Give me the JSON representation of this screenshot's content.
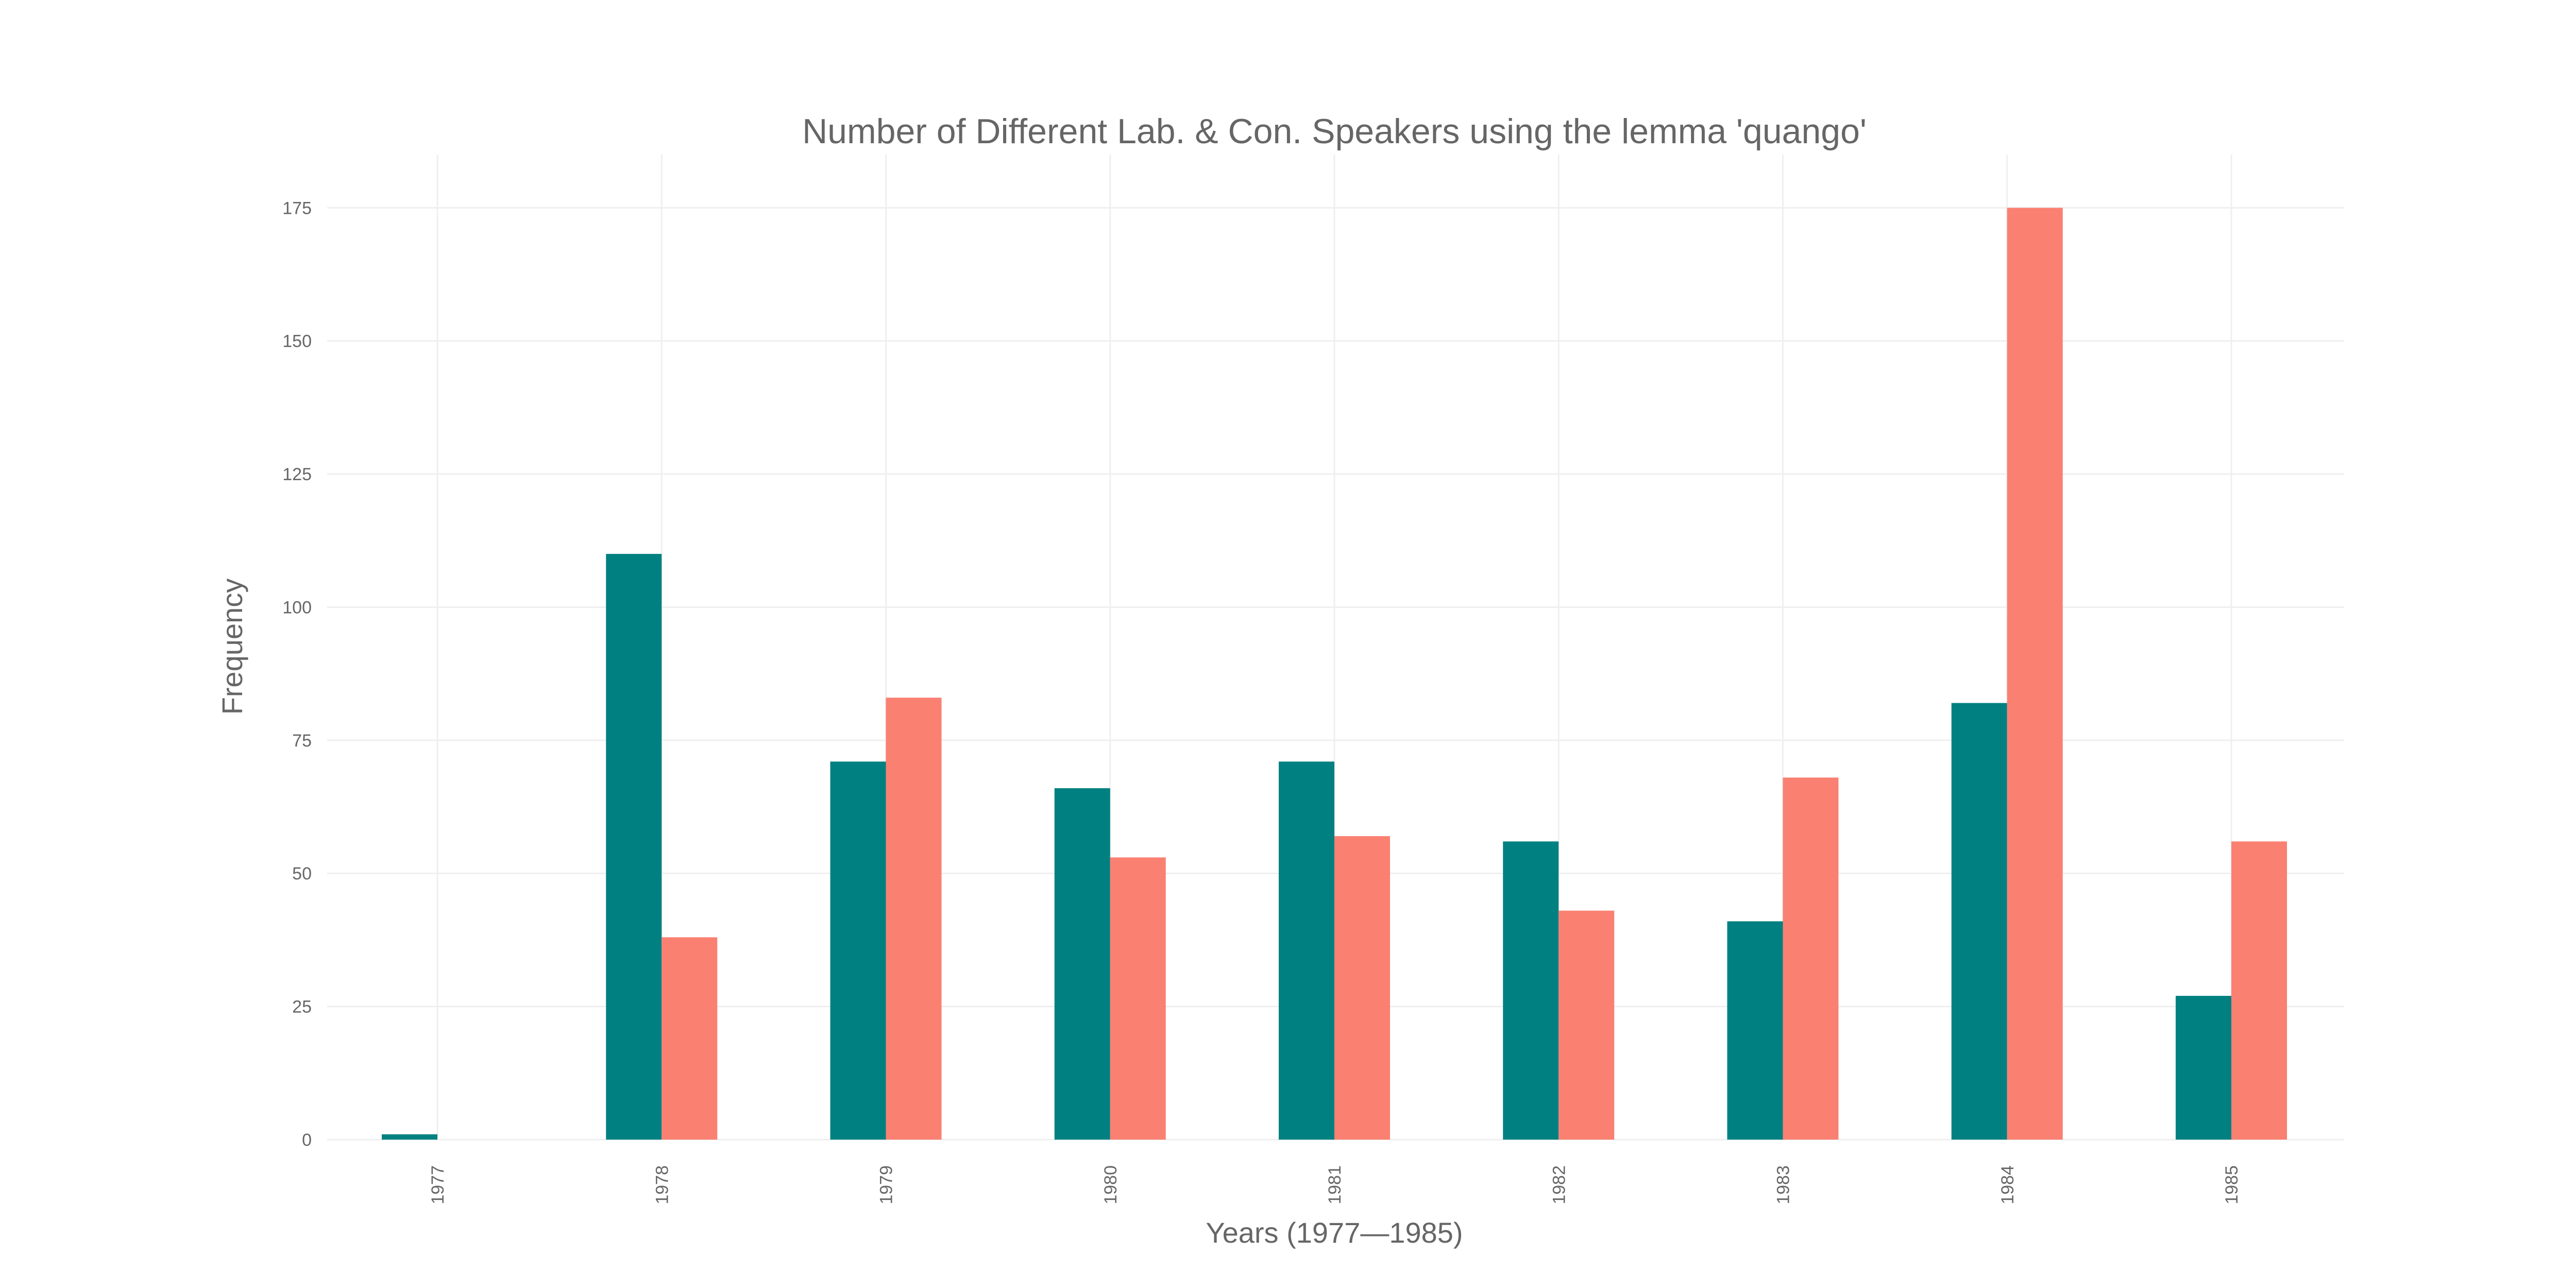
{
  "chart_data": {
    "type": "bar",
    "title": "Number of Different Lab. & Con. Speakers using the lemma 'quango'",
    "xlabel": "Years (1977—1985)",
    "ylabel": "Frequency",
    "categories": [
      "1977",
      "1978",
      "1979",
      "1980",
      "1981",
      "1982",
      "1983",
      "1984",
      "1985"
    ],
    "series": [
      {
        "values": [
          1,
          110,
          71,
          66,
          71,
          56,
          41,
          82,
          27
        ],
        "color": "#008080"
      },
      {
        "values": [
          0,
          38,
          83,
          53,
          57,
          43,
          68,
          175,
          56
        ],
        "color": "#fa8072"
      }
    ],
    "ylim": [
      0,
      185
    ],
    "yticks": [
      0,
      25,
      50,
      75,
      100,
      125,
      150,
      175
    ],
    "grid": true,
    "legend": "none"
  }
}
